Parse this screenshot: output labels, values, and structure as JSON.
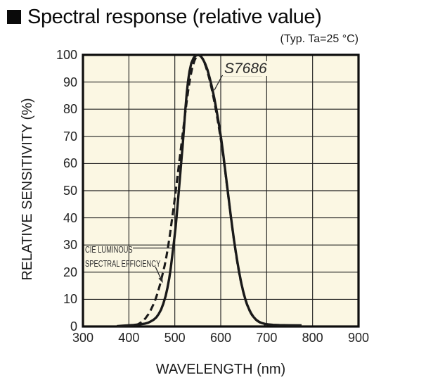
{
  "header": {
    "bullet_icon": "black-square",
    "title": "Spectral response (relative value)"
  },
  "condition_note": "(Typ. Ta=25 °C)",
  "chart_data": {
    "type": "line",
    "title": "Spectral response (relative value)",
    "xlabel": "WAVELENGTH (nm)",
    "ylabel": "RELATIVE SENSITIVITY (%)",
    "xlim": [
      300,
      900
    ],
    "ylim": [
      0,
      100
    ],
    "x_ticks": [
      300,
      400,
      500,
      600,
      700,
      800,
      900
    ],
    "y_ticks": [
      0,
      10,
      20,
      30,
      40,
      50,
      60,
      70,
      80,
      90,
      100
    ],
    "grid": true,
    "legend_position": "callout-annotations-on-plot",
    "plot_background": "#FBF7E3",
    "grid_color": "#232323",
    "border_color": "#0d0d0d",
    "curve_color": "#1a1a1a",
    "series": [
      {
        "name": "S7686",
        "line_style": "solid",
        "points": [
          [
            374,
            0.1
          ],
          [
            386,
            0.25
          ],
          [
            398,
            0.4
          ],
          [
            410,
            0.55
          ],
          [
            422,
            0.75
          ],
          [
            434,
            1
          ],
          [
            442,
            1.4
          ],
          [
            448,
            1.9
          ],
          [
            454,
            2.5
          ],
          [
            460,
            3.4
          ],
          [
            465,
            4.6
          ],
          [
            470,
            6.2
          ],
          [
            475,
            8.4
          ],
          [
            480,
            11.2
          ],
          [
            484,
            14.2
          ],
          [
            488,
            17.8
          ],
          [
            491,
            21.3
          ],
          [
            494,
            25.3
          ],
          [
            498,
            31
          ],
          [
            502,
            37
          ],
          [
            505,
            42.5
          ],
          [
            508,
            48.5
          ],
          [
            511,
            54.5
          ],
          [
            514,
            60.5
          ],
          [
            517,
            66.5
          ],
          [
            520,
            73
          ],
          [
            523,
            80
          ],
          [
            526,
            86
          ],
          [
            529,
            90.5
          ],
          [
            532,
            94
          ],
          [
            536,
            97
          ],
          [
            541,
            98.9
          ],
          [
            546,
            99.8
          ],
          [
            551,
            100
          ],
          [
            556,
            99.6
          ],
          [
            561,
            98.5
          ],
          [
            566,
            96.8
          ],
          [
            571,
            94.5
          ],
          [
            576,
            91.5
          ],
          [
            581,
            88
          ],
          [
            586,
            84
          ],
          [
            591,
            79.5
          ],
          [
            596,
            74.5
          ],
          [
            601,
            69
          ],
          [
            605,
            64
          ],
          [
            609,
            58.5
          ],
          [
            613,
            53
          ],
          [
            617,
            47.5
          ],
          [
            621,
            42
          ],
          [
            625,
            36.8
          ],
          [
            629,
            31.8
          ],
          [
            633,
            27.2
          ],
          [
            637,
            23
          ],
          [
            641,
            19.2
          ],
          [
            645,
            15.8
          ],
          [
            649,
            12.9
          ],
          [
            653,
            10.4
          ],
          [
            657,
            8.3
          ],
          [
            661,
            6.6
          ],
          [
            666,
            4.9
          ],
          [
            671,
            3.6
          ],
          [
            677,
            2.5
          ],
          [
            683,
            1.8
          ],
          [
            689,
            1.3
          ],
          [
            696,
            0.95
          ],
          [
            704,
            0.75
          ],
          [
            714,
            0.6
          ],
          [
            728,
            0.5
          ],
          [
            748,
            0.45
          ],
          [
            776,
            0.4
          ]
        ]
      },
      {
        "name": "CIE luminous spectral efficiency",
        "line_style": "dashed",
        "points": [
          [
            414,
            0.4
          ],
          [
            422,
            1
          ],
          [
            429,
            1.8
          ],
          [
            436,
            3
          ],
          [
            442,
            4.4
          ],
          [
            448,
            6.2
          ],
          [
            453,
            8
          ],
          [
            458,
            10
          ],
          [
            463,
            12.6
          ],
          [
            468,
            15.6
          ],
          [
            473,
            19
          ],
          [
            478,
            22.5
          ],
          [
            482,
            26
          ],
          [
            486,
            30
          ],
          [
            490,
            34.5
          ],
          [
            494,
            39.5
          ],
          [
            498,
            44.5
          ],
          [
            502,
            50
          ],
          [
            506,
            55.5
          ],
          [
            510,
            61
          ],
          [
            514,
            66.5
          ],
          [
            518,
            72
          ],
          [
            522,
            77.5
          ],
          [
            526,
            83
          ],
          [
            530,
            88
          ],
          [
            534,
            92
          ],
          [
            538,
            95.3
          ],
          [
            543,
            98
          ],
          [
            548,
            99.6
          ],
          [
            554,
            100
          ],
          [
            558,
            99.2
          ],
          [
            562,
            98
          ],
          [
            567,
            96
          ],
          [
            572,
            93.3
          ],
          [
            577,
            90
          ],
          [
            582,
            86.3
          ],
          [
            587,
            82
          ],
          [
            592,
            77.3
          ],
          [
            597,
            72.3
          ],
          [
            602,
            67
          ],
          [
            606,
            62
          ],
          [
            610,
            56.8
          ],
          [
            614,
            51.3
          ],
          [
            618,
            45.8
          ],
          [
            622,
            40.4
          ],
          [
            626,
            35.2
          ],
          [
            630,
            30.3
          ],
          [
            634,
            25.8
          ],
          [
            638,
            21.7
          ],
          [
            642,
            18
          ],
          [
            646,
            14.8
          ],
          [
            650,
            12
          ],
          [
            654,
            9.7
          ],
          [
            658,
            7.7
          ],
          [
            663,
            5.7
          ],
          [
            668,
            4.2
          ],
          [
            674,
            2.9
          ],
          [
            680,
            2
          ],
          [
            686,
            1.4
          ],
          [
            693,
            0.9
          ],
          [
            698,
            0.6
          ]
        ]
      }
    ],
    "annotations": [
      {
        "id": "s7686",
        "label": "S7686",
        "points_to": {
          "wavelength_nm": 586,
          "percent": 87
        }
      },
      {
        "id": "cie",
        "line1": "CIE LUMINOUS",
        "line2": "SPECTRAL EFFICIENCY",
        "points_to": {
          "wavelength_nm": 474,
          "percent": 16
        }
      }
    ]
  }
}
